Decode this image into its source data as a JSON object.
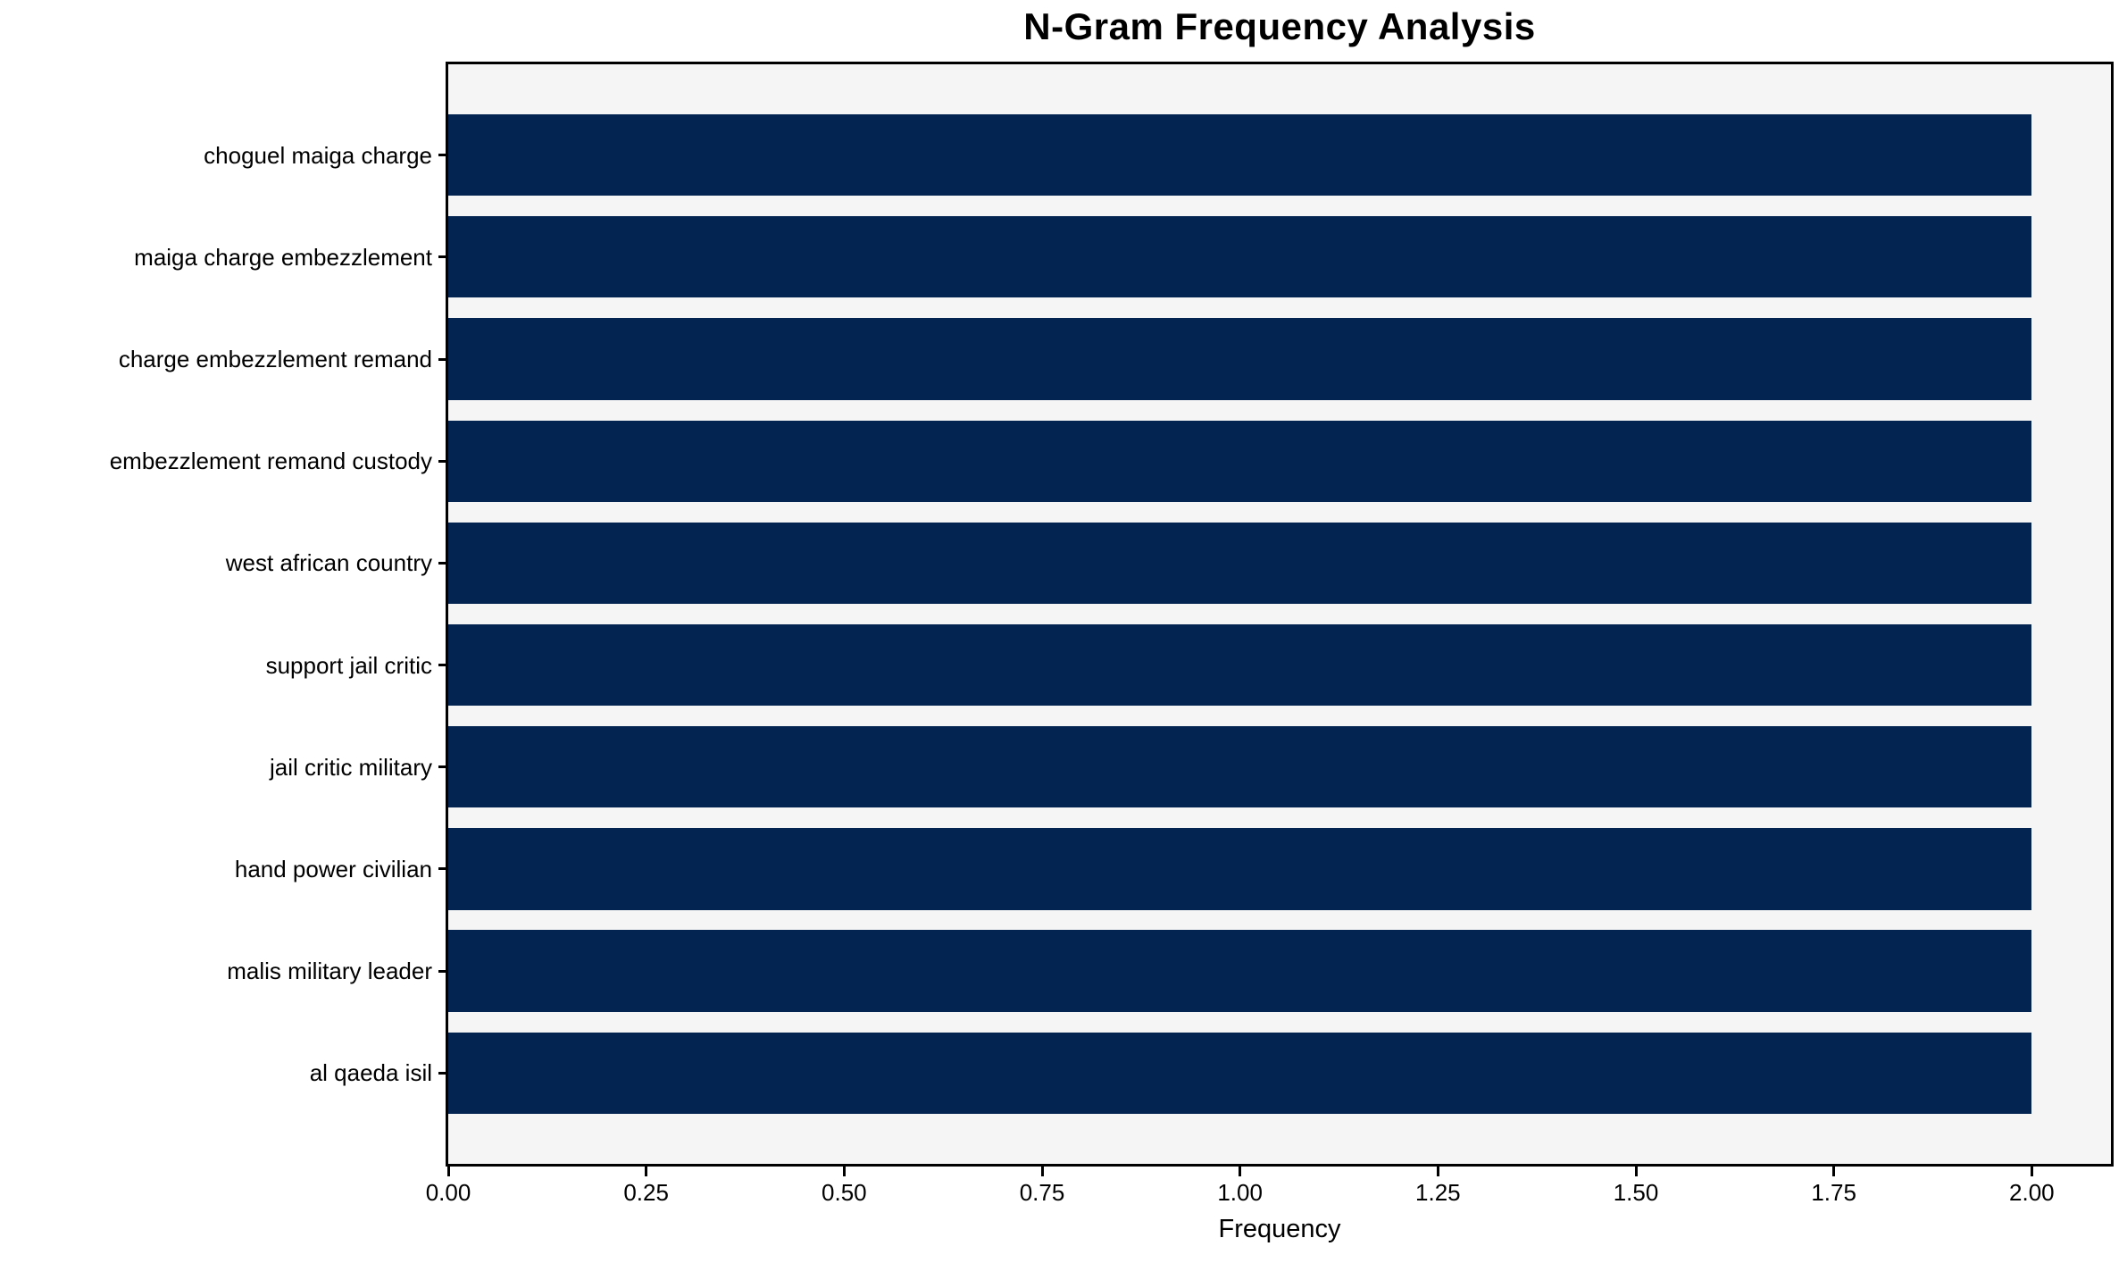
{
  "chart_data": {
    "type": "bar",
    "orientation": "horizontal",
    "title": "N-Gram Frequency Analysis",
    "xlabel": "Frequency",
    "ylabel": "",
    "categories": [
      "choguel maiga charge",
      "maiga charge embezzlement",
      "charge embezzlement remand",
      "embezzlement remand custody",
      "west african country",
      "support jail critic",
      "jail critic military",
      "hand power civilian",
      "malis military leader",
      "al qaeda isil"
    ],
    "values": [
      2,
      2,
      2,
      2,
      2,
      2,
      2,
      2,
      2,
      2
    ],
    "xlim": [
      0,
      2.1
    ],
    "xticks": [
      0,
      0.25,
      0.5,
      0.75,
      1.0,
      1.25,
      1.5,
      1.75,
      2.0
    ],
    "xtick_labels": [
      "0.00",
      "0.25",
      "0.50",
      "0.75",
      "1.00",
      "1.25",
      "1.50",
      "1.75",
      "2.00"
    ],
    "bar_height_frac": 0.8,
    "grid": false,
    "legend": "none",
    "colors": {
      "bar": "#032450",
      "plot_bg": "#f5f5f5",
      "figure_bg": "#ffffff",
      "spine": "#000000",
      "text": "#000000"
    }
  }
}
